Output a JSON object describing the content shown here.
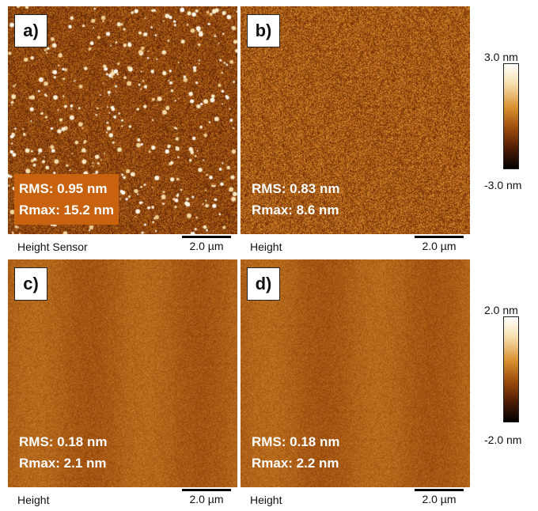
{
  "panels": [
    {
      "label": "a)",
      "rms": "RMS: 0.95 nm",
      "rmax": "Rmax: 15.2 nm",
      "caption": "Height Sensor",
      "scale": "2.0 µm"
    },
    {
      "label": "b)",
      "rms": "RMS: 0.83 nm",
      "rmax": "Rmax: 8.6 nm",
      "caption": "Height",
      "scale": "2.0 µm"
    },
    {
      "label": "c)",
      "rms": "RMS: 0.18 nm",
      "rmax": "Rmax: 2.1 nm",
      "caption": "Height",
      "scale": "2.0 µm"
    },
    {
      "label": "d)",
      "rms": "RMS: 0.18 nm",
      "rmax": "Rmax: 2.2 nm",
      "caption": "Height",
      "scale": "2.0 µm"
    }
  ],
  "colorbars": [
    {
      "max": "3.0 nm",
      "min": "-3.0 nm"
    },
    {
      "max": "2.0 nm",
      "min": "-2.0 nm"
    }
  ],
  "colors": {
    "stats_box": "#c8620f",
    "afm_base": "#a85c14"
  }
}
